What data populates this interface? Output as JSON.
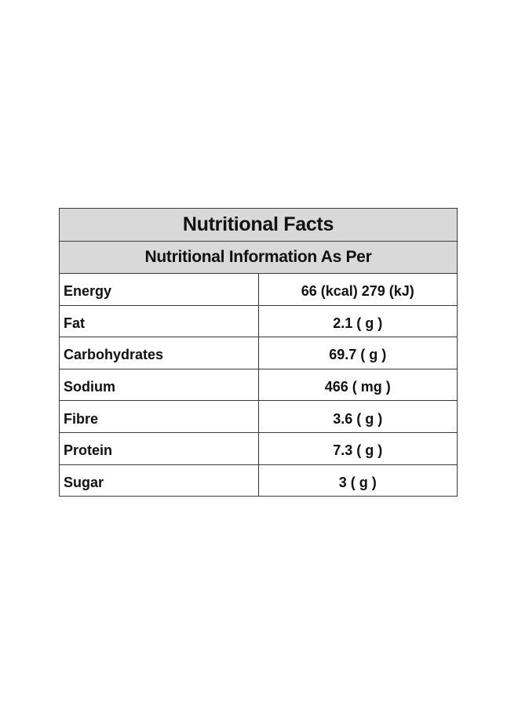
{
  "table": {
    "title": "Nutritional Facts",
    "subtitle": "Nutritional Information As Per",
    "rows": [
      {
        "label": "Energy",
        "value": "66 (kcal) 279 (kJ)"
      },
      {
        "label": "Fat",
        "value": "2.1 ( g )"
      },
      {
        "label": "Carbohydrates",
        "value": "69.7 ( g )"
      },
      {
        "label": "Sodium",
        "value": "466 ( mg )"
      },
      {
        "label": "Fibre",
        "value": "3.6 ( g )"
      },
      {
        "label": "Protein",
        "value": "7.3 ( g )"
      },
      {
        "label": "Sugar",
        "value": "3 ( g )"
      }
    ]
  },
  "colors": {
    "header_background": "#d9d9d9",
    "border": "#3a3a3a",
    "text": "#111111",
    "page_background": "#ffffff"
  }
}
